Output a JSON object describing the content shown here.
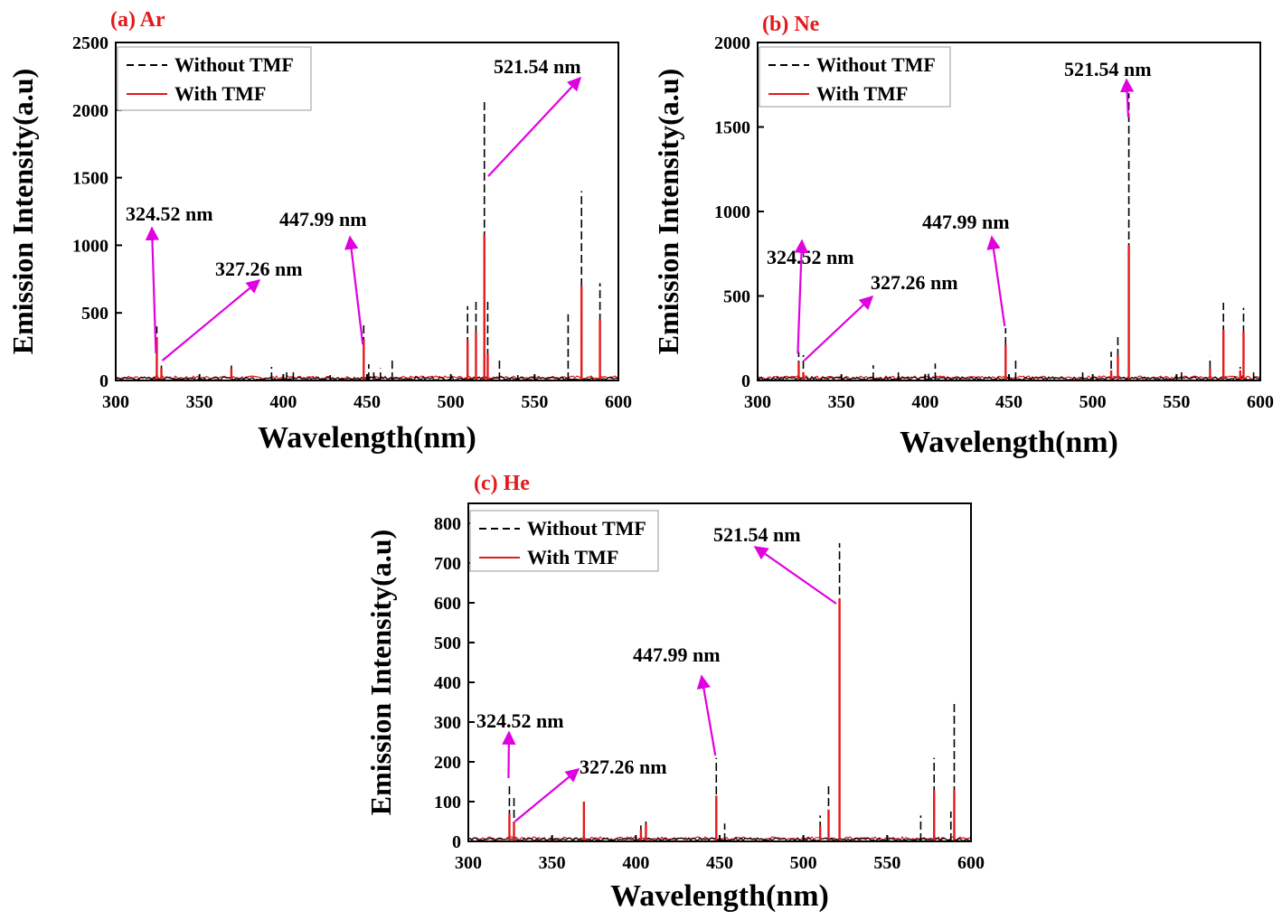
{
  "chart_data": [
    {
      "type": "line",
      "panel_label": "(a) Ar",
      "xlabel": "Wavelength(nm)",
      "ylabel": "Emission Intensity(a.u)",
      "xlim": [
        300,
        600
      ],
      "ylim": [
        0,
        2500
      ],
      "xticks": [
        300,
        350,
        400,
        450,
        500,
        550,
        600
      ],
      "yticks": [
        0,
        500,
        1000,
        1500,
        2000,
        2500
      ],
      "legend": {
        "position": "top-left",
        "entries": [
          "Without TMF",
          "With TMF"
        ]
      },
      "series": [
        {
          "name": "Without TMF",
          "color": "#000000",
          "style": "dashed",
          "peaks": [
            [
              324.52,
              400
            ],
            [
              327.26,
              110
            ],
            [
              369,
              110
            ],
            [
              393,
              100
            ],
            [
              402,
              70
            ],
            [
              406,
              80
            ],
            [
              428,
              40
            ],
            [
              448,
              420
            ],
            [
              451,
              120
            ],
            [
              454,
              80
            ],
            [
              458,
              90
            ],
            [
              465,
              160
            ],
            [
              510,
              550
            ],
            [
              515,
              600
            ],
            [
              520,
              2080
            ],
            [
              522,
              600
            ],
            [
              529,
              150
            ],
            [
              540,
              40
            ],
            [
              570,
              490
            ],
            [
              578,
              1400
            ],
            [
              589,
              720
            ]
          ]
        },
        {
          "name": "With TMF",
          "color": "#e31a1c",
          "style": "solid",
          "peaks": [
            [
              324.52,
              320
            ],
            [
              327.26,
              90
            ],
            [
              369,
              90
            ],
            [
              448,
              300
            ],
            [
              510,
              300
            ],
            [
              515,
              360
            ],
            [
              520,
              1080
            ],
            [
              522,
              200
            ],
            [
              578,
              700
            ],
            [
              589,
              450
            ]
          ]
        }
      ],
      "annotations": [
        {
          "text": "324.52 nm",
          "x": 324.52
        },
        {
          "text": "327.26 nm",
          "x": 327.26
        },
        {
          "text": "447.99 nm",
          "x": 447.99
        },
        {
          "text": "521.54 nm",
          "x": 521.54
        }
      ]
    },
    {
      "type": "line",
      "panel_label": "(b) Ne",
      "xlabel": "Wavelength(nm)",
      "ylabel": "Emission Intensity(a.u)",
      "xlim": [
        300,
        600
      ],
      "ylim": [
        0,
        2000
      ],
      "xticks": [
        300,
        350,
        400,
        450,
        500,
        550,
        600
      ],
      "yticks": [
        0,
        500,
        1000,
        1500,
        2000
      ],
      "legend": {
        "position": "top-left",
        "entries": [
          "Without TMF",
          "With TMF"
        ]
      },
      "series": [
        {
          "name": "Without TMF",
          "color": "#000000",
          "style": "dashed",
          "peaks": [
            [
              324.52,
              170
            ],
            [
              327.26,
              150
            ],
            [
              369,
              90
            ],
            [
              384,
              70
            ],
            [
              402,
              40
            ],
            [
              406,
              100
            ],
            [
              448,
              310
            ],
            [
              454,
              130
            ],
            [
              494,
              60
            ],
            [
              511,
              170
            ],
            [
              515,
              270
            ],
            [
              521.54,
              1700
            ],
            [
              553,
              60
            ],
            [
              570,
              140
            ],
            [
              578,
              460
            ],
            [
              588,
              80
            ],
            [
              590,
              430
            ],
            [
              596,
              50
            ]
          ]
        },
        {
          "name": "With TMF",
          "color": "#e31a1c",
          "style": "solid",
          "peaks": [
            [
              324.52,
              110
            ],
            [
              327.26,
              50
            ],
            [
              448,
              210
            ],
            [
              511,
              60
            ],
            [
              515,
              150
            ],
            [
              521.54,
              800
            ],
            [
              570,
              70
            ],
            [
              578,
              300
            ],
            [
              588,
              60
            ],
            [
              590,
              290
            ]
          ]
        }
      ],
      "annotations": [
        {
          "text": "324.52 nm",
          "x": 324.52
        },
        {
          "text": "327.26 nm",
          "x": 327.26
        },
        {
          "text": "447.99 nm",
          "x": 447.99
        },
        {
          "text": "521.54 nm",
          "x": 521.54
        }
      ]
    },
    {
      "type": "line",
      "panel_label": "(c) He",
      "xlabel": "Wavelength(nm)",
      "ylabel": "Emission Intensity(a.u)",
      "xlim": [
        300,
        600
      ],
      "ylim": [
        0,
        850
      ],
      "xticks": [
        300,
        350,
        400,
        450,
        500,
        550,
        600
      ],
      "yticks": [
        0,
        100,
        200,
        300,
        400,
        500,
        600,
        700,
        800
      ],
      "legend": {
        "position": "top-left",
        "entries": [
          "Without TMF",
          "With TMF"
        ]
      },
      "series": [
        {
          "name": "Without TMF",
          "color": "#000000",
          "style": "dashed",
          "peaks": [
            [
              324.52,
              140
            ],
            [
              327.26,
              115
            ],
            [
              369,
              50
            ],
            [
              403,
              40
            ],
            [
              406,
              55
            ],
            [
              448,
              210
            ],
            [
              453,
              45
            ],
            [
              510,
              65
            ],
            [
              515,
              140
            ],
            [
              521.54,
              750
            ],
            [
              570,
              65
            ],
            [
              578,
              210
            ],
            [
              588,
              75
            ],
            [
              590,
              350
            ]
          ]
        },
        {
          "name": "With TMF",
          "color": "#e31a1c",
          "style": "solid",
          "peaks": [
            [
              324.52,
              70
            ],
            [
              327.26,
              50
            ],
            [
              369,
              100
            ],
            [
              403,
              30
            ],
            [
              406,
              45
            ],
            [
              448,
              115
            ],
            [
              510,
              40
            ],
            [
              515,
              80
            ],
            [
              521.54,
              610
            ],
            [
              578,
              130
            ],
            [
              590,
              130
            ]
          ]
        }
      ],
      "annotations": [
        {
          "text": "324.52 nm",
          "x": 324.52
        },
        {
          "text": "327.26 nm",
          "x": 327.26
        },
        {
          "text": "447.99 nm",
          "x": 447.99
        },
        {
          "text": "521.54 nm",
          "x": 521.54
        }
      ]
    }
  ]
}
